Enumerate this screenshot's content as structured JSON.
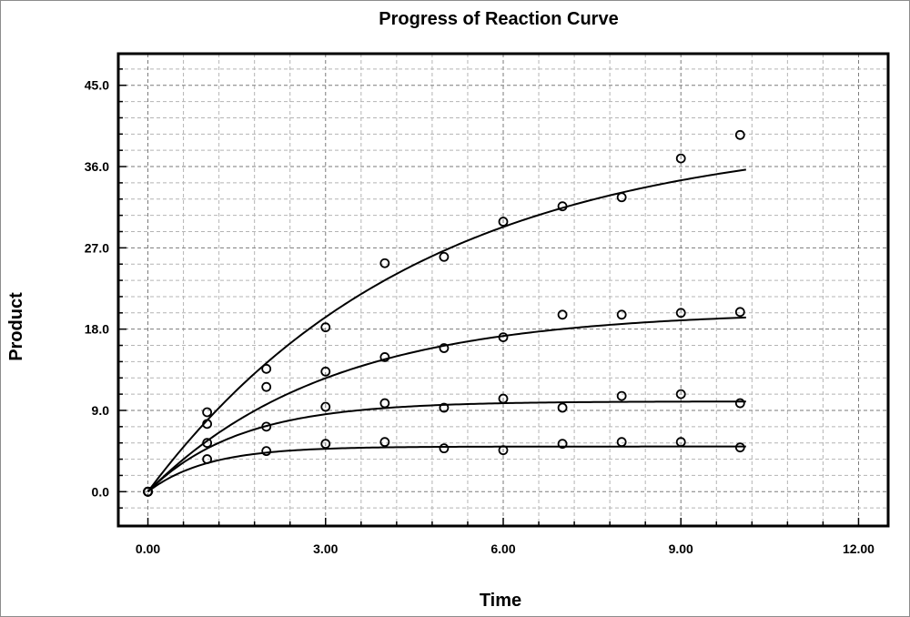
{
  "chart_data": {
    "type": "scatter",
    "title": "Progress of Reaction Curve",
    "xlabel": "Time",
    "ylabel": "Product",
    "xlim": [
      -0.5,
      12.5
    ],
    "ylim": [
      -3.8,
      48.5
    ],
    "x_ticks": [
      "0.00",
      "3.00",
      "6.00",
      "9.00",
      "12.00"
    ],
    "y_ticks": [
      "0.0",
      "9.0",
      "18.0",
      "27.0",
      "36.0",
      "45.0"
    ],
    "grid": true,
    "marker": "open-circle",
    "series": [
      {
        "points": [
          [
            0,
            0
          ],
          [
            1,
            8.8
          ],
          [
            2,
            13.6
          ],
          [
            3,
            18.2
          ],
          [
            4,
            25.3
          ],
          [
            5,
            26.0
          ],
          [
            6,
            29.9
          ],
          [
            7,
            31.6
          ],
          [
            8,
            32.6
          ],
          [
            9,
            36.9
          ],
          [
            10,
            39.5
          ]
        ],
        "fit": {
          "amplitude": 40.0,
          "rate": 0.22
        }
      },
      {
        "points": [
          [
            0,
            0
          ],
          [
            1,
            7.5
          ],
          [
            2,
            11.6
          ],
          [
            3,
            13.3
          ],
          [
            4,
            14.9
          ],
          [
            5,
            15.9
          ],
          [
            6,
            17.1
          ],
          [
            7,
            19.6
          ],
          [
            8,
            19.6
          ],
          [
            9,
            19.8
          ],
          [
            10,
            19.9
          ]
        ],
        "fit": {
          "amplitude": 20.0,
          "rate": 0.33
        }
      },
      {
        "points": [
          [
            0,
            0
          ],
          [
            1,
            5.4
          ],
          [
            2,
            7.2
          ],
          [
            3,
            9.4
          ],
          [
            4,
            9.8
          ],
          [
            5,
            9.3
          ],
          [
            6,
            10.3
          ],
          [
            7,
            9.3
          ],
          [
            8,
            10.6
          ],
          [
            9,
            10.8
          ],
          [
            10,
            9.8
          ]
        ],
        "fit": {
          "amplitude": 10.0,
          "rate": 0.65
        }
      },
      {
        "points": [
          [
            0,
            0
          ],
          [
            1,
            3.6
          ],
          [
            2,
            4.5
          ],
          [
            3,
            5.3
          ],
          [
            4,
            5.5
          ],
          [
            5,
            4.8
          ],
          [
            6,
            4.6
          ],
          [
            7,
            5.3
          ],
          [
            8,
            5.5
          ],
          [
            9,
            5.5
          ],
          [
            10,
            4.9
          ]
        ],
        "fit": {
          "amplitude": 5.0,
          "rate": 1.0
        }
      }
    ]
  }
}
